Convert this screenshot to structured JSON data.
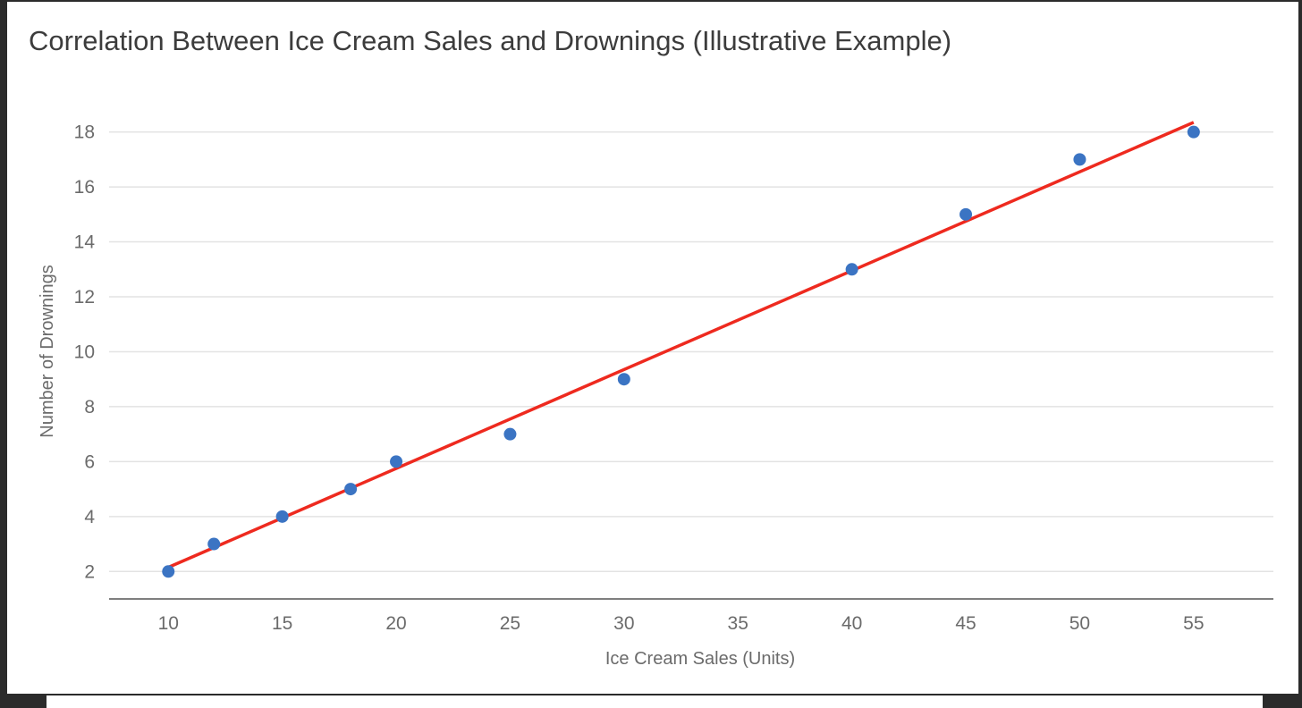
{
  "chart_data": {
    "type": "scatter",
    "title": "Correlation Between Ice Cream Sales and Drownings (Illustrative Example)",
    "xlabel": "Ice Cream Sales (Units)",
    "ylabel": "Number of Drownings",
    "xlim": [
      7.4,
      58.5
    ],
    "ylim": [
      1.0,
      18.9
    ],
    "x_ticks": [
      10,
      15,
      20,
      25,
      30,
      35,
      40,
      45,
      50,
      55
    ],
    "y_ticks": [
      2,
      4,
      6,
      8,
      10,
      12,
      14,
      16,
      18
    ],
    "grid": true,
    "series": [
      {
        "type": "scatter",
        "x": [
          10,
          12,
          15,
          18,
          20,
          25,
          30,
          40,
          45,
          50,
          55
        ],
        "y": [
          2,
          3,
          4,
          5,
          6,
          7,
          9,
          13,
          15,
          17,
          18
        ],
        "color": "#3b74c3"
      },
      {
        "type": "line",
        "x": [
          10,
          55
        ],
        "y": [
          2.15,
          18.35
        ],
        "color": "#ee2a1f"
      }
    ]
  },
  "colors": {
    "grid": "#e3e3e3",
    "axis": "#555555",
    "point": "#3b74c3",
    "trend": "#ee2a1f"
  }
}
